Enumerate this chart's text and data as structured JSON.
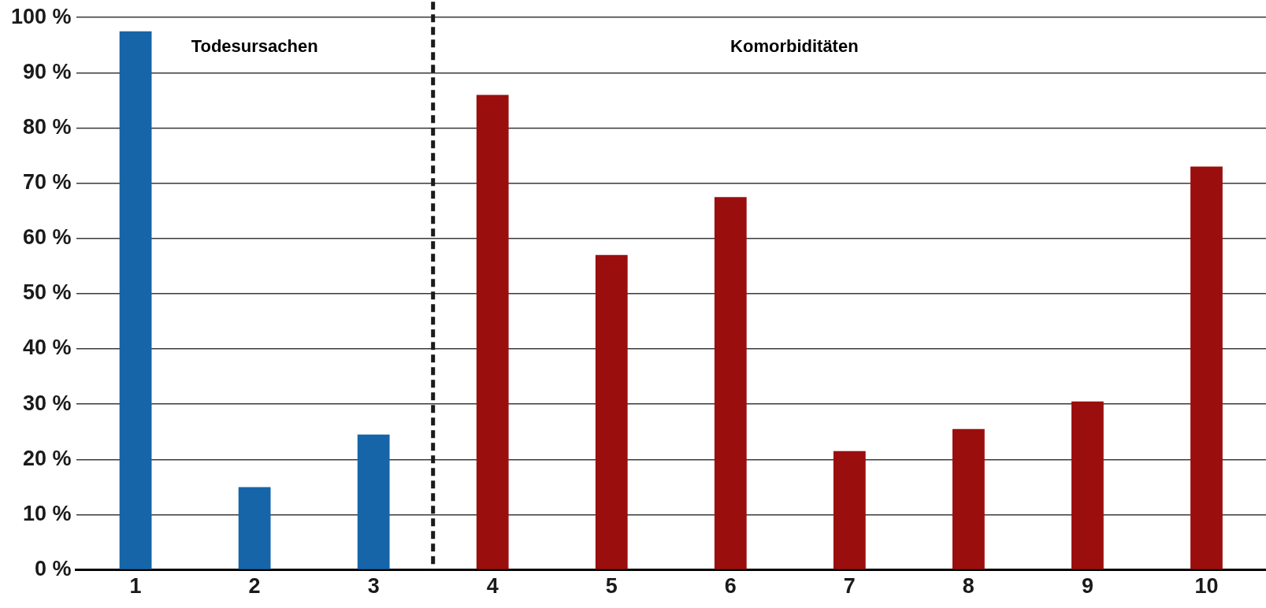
{
  "chart_data": {
    "type": "bar",
    "x": [
      1,
      2,
      3,
      4,
      5,
      6,
      7,
      8,
      9,
      10
    ],
    "values": [
      97.5,
      15,
      24.5,
      86,
      57,
      67.5,
      21.5,
      25.5,
      30.5,
      73
    ],
    "colors": [
      "#1565a8",
      "#1565a8",
      "#1565a8",
      "#9b0e0e",
      "#9b0e0e",
      "#9b0e0e",
      "#9b0e0e",
      "#9b0e0e",
      "#9b0e0e",
      "#9b0e0e"
    ],
    "xlim": [
      0.5,
      10.5
    ],
    "xticks": [
      1,
      2,
      3,
      4,
      5,
      6,
      7,
      8,
      9,
      10
    ],
    "ylim": [
      0,
      100
    ],
    "yticks": [
      {
        "value": 0,
        "label": "0 %"
      },
      {
        "value": 10,
        "label": "10 %"
      },
      {
        "value": 20,
        "label": "20 %"
      },
      {
        "value": 30,
        "label": "30 %"
      },
      {
        "value": 40,
        "label": "40 %"
      },
      {
        "value": 50,
        "label": "50 %"
      },
      {
        "value": 60,
        "label": "60 %"
      },
      {
        "value": 70,
        "label": "70 %"
      },
      {
        "value": 80,
        "label": "80 %"
      },
      {
        "value": 90,
        "label": "90 %"
      },
      {
        "value": 100,
        "label": "100 %"
      }
    ],
    "grid": "y",
    "legend": false,
    "ref_lines": [
      {
        "axis": "x",
        "value": 3.5,
        "color": "#1a1a1a",
        "line_style": "dashed"
      }
    ],
    "annotations": [
      "Todesursachen",
      "Komorbiditäten"
    ]
  }
}
